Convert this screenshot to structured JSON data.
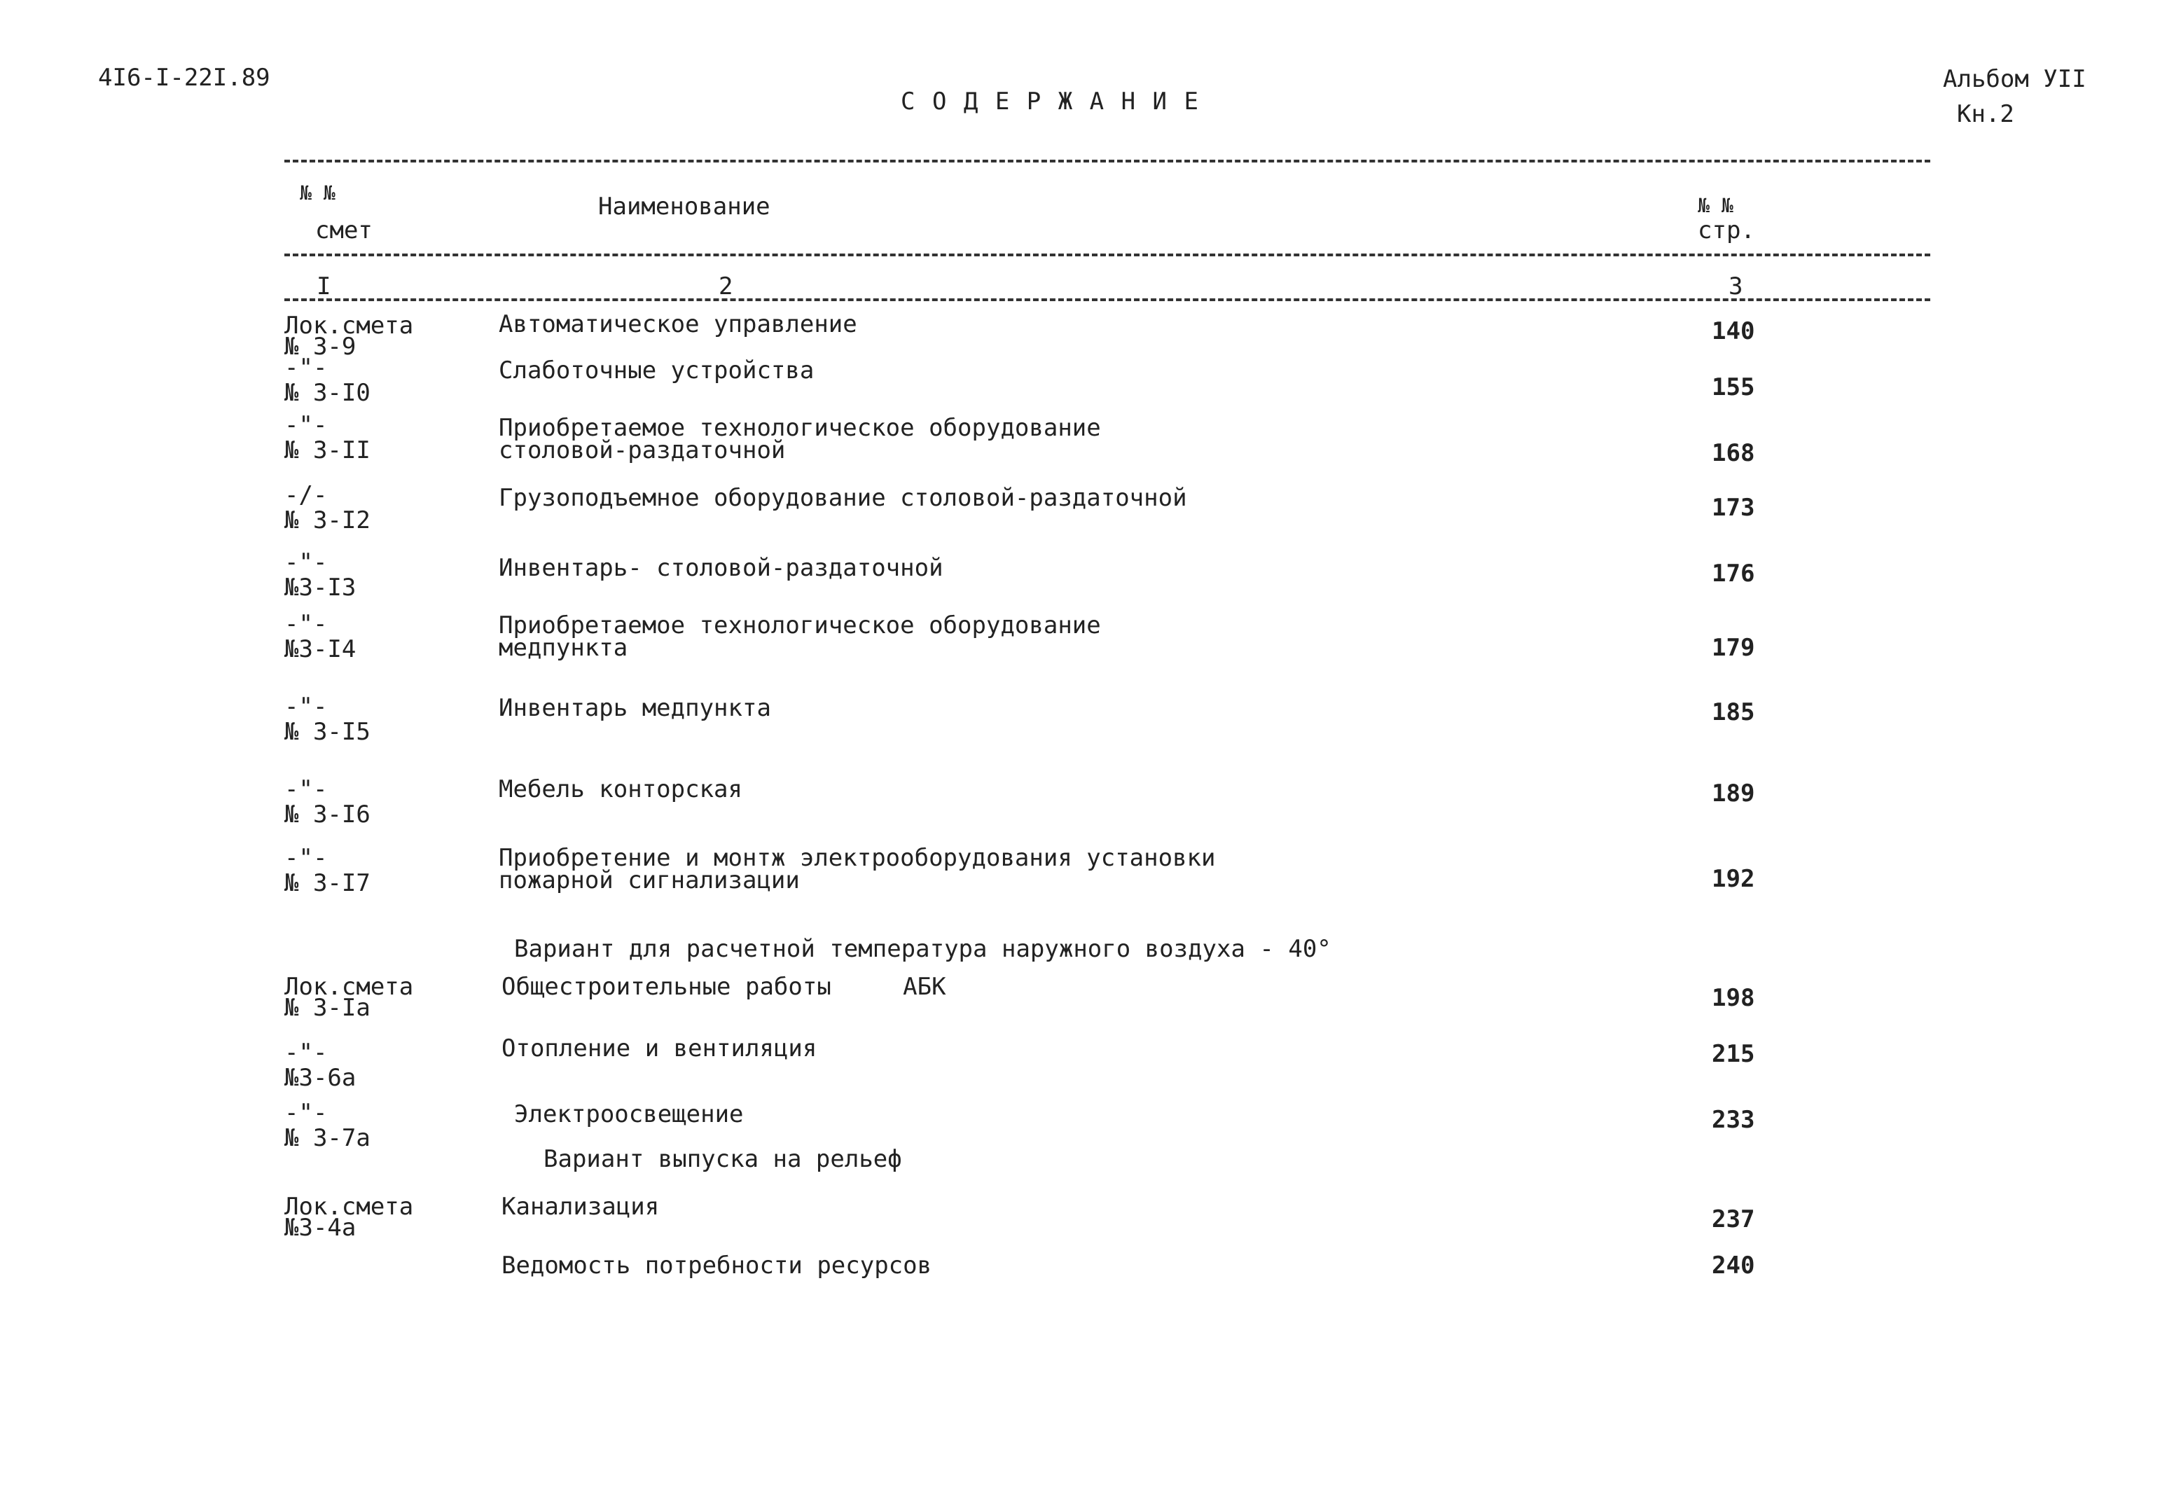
{
  "header": {
    "doc_code": "4I6-I-22I.89",
    "title": "С О Д Е Р Ж А Н И Е",
    "album": "Альбом УII",
    "book": "Кн.2"
  },
  "table_header": {
    "col1_no": "№ №",
    "col1_label": "смет",
    "col2_label": "Наименование",
    "col3_no": "№ №",
    "col3_label": "стр.",
    "col_numbers": [
      "I",
      "2",
      "3"
    ]
  },
  "rows": [
    {
      "estimate": [
        "Лок.смета",
        "№ 3-9"
      ],
      "name": [
        "Автоматическое управление"
      ],
      "page": "140"
    },
    {
      "estimate": [
        "-\"-",
        "№ 3-I0"
      ],
      "name": [
        "Слаботочные устройства"
      ],
      "page": "155"
    },
    {
      "estimate": [
        "-\"-",
        "№ 3-II"
      ],
      "name": [
        "Приобретаемое технологическое оборудование",
        "столовой-раздаточной"
      ],
      "page": "168"
    },
    {
      "estimate": [
        "-/-",
        "№ 3-I2"
      ],
      "name": [
        "Грузоподъемное оборудование столовой-раздаточной"
      ],
      "page": "173"
    },
    {
      "estimate": [
        "-\"-",
        "№3-I3"
      ],
      "name": [
        "Инвентарь- столовой-раздаточной"
      ],
      "page": "176"
    },
    {
      "estimate": [
        "-\"-",
        "№3-I4"
      ],
      "name": [
        "Приобретаемое технологическое оборудование",
        "медпункта"
      ],
      "page": "179"
    },
    {
      "estimate": [
        "-\"-",
        "№ 3-I5"
      ],
      "name": [
        "Инвентарь медпункта"
      ],
      "page": "185"
    },
    {
      "estimate": [
        "-\"-",
        "№ 3-I6"
      ],
      "name": [
        "Мебель конторская"
      ],
      "page": "189"
    },
    {
      "estimate": [
        "-\"-",
        "№ 3-I7"
      ],
      "name": [
        "Приобретение и монтж электрооборудования установки",
        "пожарной сигнализации"
      ],
      "page": "192"
    },
    {
      "estimate": [
        "Лок.смета",
        "№ 3-Iа"
      ],
      "name": [
        "Общестроительные работы     АБК"
      ],
      "page": "198"
    },
    {
      "estimate": [
        "-\"-",
        "№3-6а"
      ],
      "name": [
        "Отопление и вентиляция"
      ],
      "page": "215"
    },
    {
      "estimate": [
        "-\"-",
        "№ 3-7а"
      ],
      "name": [
        "Электроосвещение"
      ],
      "page": "233"
    },
    {
      "estimate": [
        "Лок.смета",
        "№3-4а"
      ],
      "name": [
        "Канализация"
      ],
      "page": "237"
    },
    {
      "estimate": [],
      "name": [
        "Ведомость потребности ресурсов"
      ],
      "page": "240"
    }
  ],
  "sections": [
    "Вариант для расчетной температура наружного воздуха - 40°",
    "Вариант выпуска на рельеф"
  ]
}
